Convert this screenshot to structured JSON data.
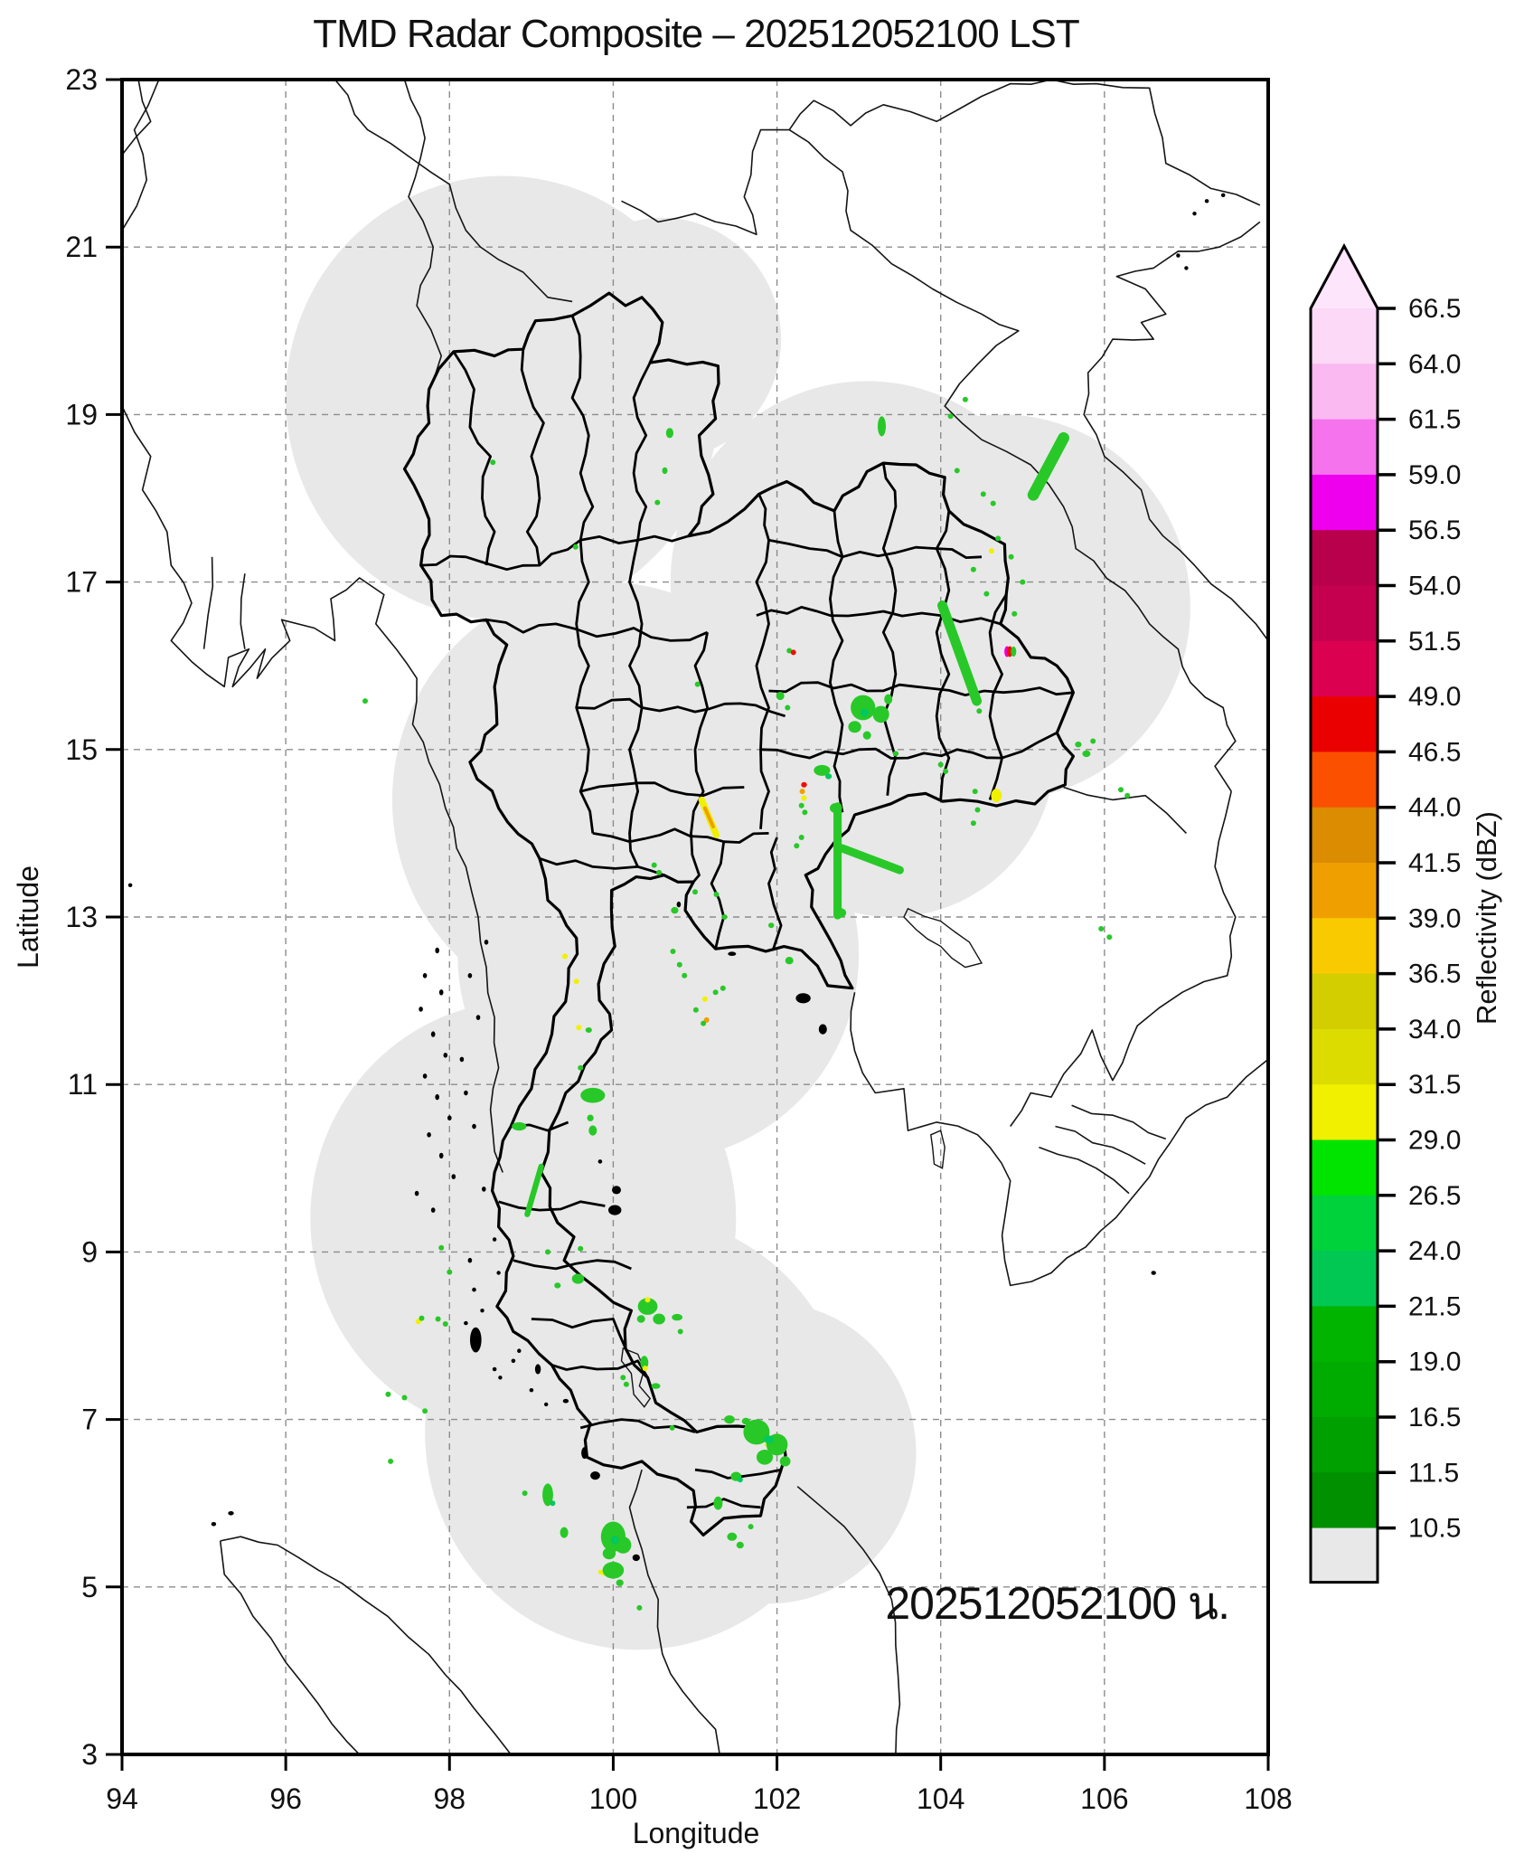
{
  "title": "TMD Radar Composite – 202512052100 LST",
  "timestamp_annotation": "202512052100 น.",
  "axes": {
    "xlabel": "Longitude",
    "ylabel": "Latitude",
    "x_range": [
      94,
      108
    ],
    "y_range": [
      3,
      23
    ],
    "x_ticks": [
      94,
      96,
      98,
      100,
      102,
      104,
      106,
      108
    ],
    "y_ticks": [
      3,
      5,
      7,
      9,
      11,
      13,
      15,
      17,
      19,
      21,
      23
    ],
    "grid_x": [
      96,
      98,
      100,
      102,
      104,
      106
    ],
    "grid_y": [
      5,
      7,
      9,
      11,
      13,
      15,
      17,
      19,
      21
    ]
  },
  "colorbar": {
    "label": "Reflectivity (dBZ)",
    "tick_labels_top_to_bottom": [
      "66.5",
      "64.0",
      "61.5",
      "59.0",
      "56.5",
      "54.0",
      "51.5",
      "49.0",
      "46.5",
      "44.0",
      "41.5",
      "39.0",
      "36.5",
      "34.0",
      "31.5",
      "29.0",
      "26.5",
      "24.0",
      "21.5",
      "19.0",
      "16.5",
      "11.5",
      "10.5"
    ],
    "segment_colors_top_to_bottom": [
      "#FBD9F7",
      "#FAB9F1",
      "#F573EC",
      "#EE00EE",
      "#B8004C",
      "#C4004F",
      "#DC0050",
      "#EB0000",
      "#FA5000",
      "#DC8C00",
      "#EFA000",
      "#FACA00",
      "#D2CE00",
      "#DCDC00",
      "#F0F000",
      "#00E400",
      "#00D23C",
      "#00C853",
      "#00B400",
      "#00AC00",
      "#00A000",
      "#009000"
    ],
    "under_color": "#E8E8E8",
    "over_color": "#FDE5FB"
  },
  "map_data": {
    "type": "radar-composite-map",
    "coverage_fill": "#E8E8E8",
    "coverage_circles_lon_lat_rdeg": [
      [
        98.65,
        19.2,
        2.65
      ],
      [
        100.6,
        19.9,
        1.45
      ],
      [
        103.1,
        17.0,
        2.4
      ],
      [
        104.75,
        16.7,
        2.3
      ],
      [
        103.4,
        15.0,
        2.0
      ],
      [
        99.9,
        14.4,
        2.6
      ],
      [
        100.55,
        12.55,
        2.45
      ],
      [
        98.9,
        9.4,
        2.6
      ],
      [
        100.3,
        6.85,
        2.6
      ],
      [
        101.9,
        6.6,
        1.8
      ]
    ],
    "echo_palette": {
      "G": "#28C828",
      "G2": "#00C860",
      "Y": "#F0F000",
      "O": "#F0A000",
      "R": "#EE1000",
      "M": "#E800C8",
      "W": "#FCE0F8"
    },
    "echo_blobs_lon_lat_w_h_color": [
      [
        100.69,
        18.78,
        0.09,
        0.12,
        "G"
      ],
      [
        100.63,
        18.33,
        0.06,
        0.08,
        "G"
      ],
      [
        100.54,
        17.95,
        0.05,
        0.06,
        "G"
      ],
      [
        98.53,
        18.43,
        0.05,
        0.05,
        "G"
      ],
      [
        99.54,
        17.42,
        0.05,
        0.05,
        "G"
      ],
      [
        96.97,
        15.58,
        0.06,
        0.06,
        "G"
      ],
      [
        101.03,
        15.78,
        0.05,
        0.05,
        "G"
      ],
      [
        103.28,
        18.86,
        0.1,
        0.24,
        "G"
      ],
      [
        104.3,
        19.18,
        0.06,
        0.05,
        "G"
      ],
      [
        104.12,
        18.98,
        0.05,
        0.04,
        "G"
      ],
      [
        104.2,
        18.33,
        0.04,
        0.04,
        "G"
      ],
      [
        104.52,
        18.05,
        0.05,
        0.05,
        "G"
      ],
      [
        104.64,
        17.94,
        0.04,
        0.04,
        "G"
      ],
      [
        104.7,
        17.52,
        0.05,
        0.04,
        "G"
      ],
      [
        104.62,
        17.37,
        0.05,
        0.04,
        "Y"
      ],
      [
        104.86,
        17.3,
        0.04,
        0.04,
        "G"
      ],
      [
        104.4,
        17.15,
        0.04,
        0.04,
        "G"
      ],
      [
        105.0,
        17.0,
        0.04,
        0.04,
        "G"
      ],
      [
        104.56,
        16.86,
        0.04,
        0.04,
        "G"
      ],
      [
        104.9,
        16.62,
        0.04,
        0.04,
        "G"
      ],
      [
        104.77,
        16.17,
        0.05,
        0.13,
        "W"
      ],
      [
        104.81,
        16.17,
        0.04,
        0.13,
        "M"
      ],
      [
        104.845,
        16.17,
        0.035,
        0.13,
        "R"
      ],
      [
        104.89,
        16.17,
        0.05,
        0.12,
        "G"
      ],
      [
        104.47,
        15.46,
        0.06,
        0.06,
        "G"
      ],
      [
        103.05,
        15.5,
        0.3,
        0.3,
        "G"
      ],
      [
        103.27,
        15.42,
        0.2,
        0.2,
        "G"
      ],
      [
        102.95,
        15.27,
        0.16,
        0.14,
        "G"
      ],
      [
        103.1,
        15.17,
        0.1,
        0.1,
        "G"
      ],
      [
        103.36,
        15.6,
        0.1,
        0.12,
        "G"
      ],
      [
        103.07,
        15.44,
        0.1,
        0.1,
        "G2"
      ],
      [
        103.45,
        14.95,
        0.07,
        0.06,
        "G"
      ],
      [
        102.04,
        15.64,
        0.1,
        0.1,
        "G"
      ],
      [
        102.13,
        15.5,
        0.05,
        0.05,
        "G"
      ],
      [
        102.15,
        16.18,
        0.05,
        0.04,
        "G"
      ],
      [
        102.2,
        16.16,
        0.04,
        0.04,
        "R"
      ],
      [
        104.68,
        14.45,
        0.13,
        0.16,
        "Y"
      ],
      [
        104.42,
        14.5,
        0.06,
        0.06,
        "G"
      ],
      [
        104.45,
        14.28,
        0.05,
        0.05,
        "G"
      ],
      [
        104.4,
        14.12,
        0.06,
        0.05,
        "G"
      ],
      [
        105.68,
        15.06,
        0.08,
        0.07,
        "G"
      ],
      [
        105.78,
        14.95,
        0.1,
        0.08,
        "G"
      ],
      [
        105.86,
        15.1,
        0.06,
        0.05,
        "G"
      ],
      [
        106.2,
        14.52,
        0.05,
        0.04,
        "G"
      ],
      [
        106.28,
        14.45,
        0.04,
        0.04,
        "G"
      ],
      [
        105.96,
        12.86,
        0.06,
        0.05,
        "G"
      ],
      [
        106.06,
        12.76,
        0.05,
        0.04,
        "G"
      ],
      [
        102.33,
        14.58,
        0.07,
        0.06,
        "R"
      ],
      [
        102.31,
        14.5,
        0.06,
        0.05,
        "O"
      ],
      [
        102.33,
        14.42,
        0.06,
        0.05,
        "Y"
      ],
      [
        102.3,
        14.33,
        0.05,
        0.05,
        "G"
      ],
      [
        102.34,
        14.25,
        0.04,
        0.05,
        "G"
      ],
      [
        102.55,
        14.75,
        0.2,
        0.13,
        "G"
      ],
      [
        102.63,
        14.68,
        0.08,
        0.07,
        "G2"
      ],
      [
        102.72,
        14.3,
        0.15,
        0.12,
        "G"
      ],
      [
        102.78,
        13.05,
        0.13,
        0.11,
        "G"
      ],
      [
        102.3,
        13.95,
        0.06,
        0.05,
        "G"
      ],
      [
        102.24,
        13.85,
        0.05,
        0.05,
        "G"
      ],
      [
        104.0,
        14.82,
        0.05,
        0.04,
        "G"
      ],
      [
        104.06,
        14.74,
        0.04,
        0.04,
        "G"
      ],
      [
        100.5,
        13.62,
        0.05,
        0.04,
        "G"
      ],
      [
        100.56,
        13.53,
        0.04,
        0.04,
        "G"
      ],
      [
        100.75,
        13.08,
        0.09,
        0.08,
        "G"
      ],
      [
        101.0,
        13.3,
        0.04,
        0.04,
        "G"
      ],
      [
        101.26,
        13.27,
        0.04,
        0.04,
        "G"
      ],
      [
        101.36,
        13.0,
        0.04,
        0.04,
        "G"
      ],
      [
        101.93,
        12.9,
        0.07,
        0.06,
        "G"
      ],
      [
        102.15,
        12.48,
        0.1,
        0.09,
        "G"
      ],
      [
        99.41,
        12.53,
        0.07,
        0.06,
        "Y"
      ],
      [
        99.55,
        12.23,
        0.06,
        0.06,
        "Y"
      ],
      [
        99.58,
        11.68,
        0.05,
        0.05,
        "Y"
      ],
      [
        99.7,
        11.65,
        0.08,
        0.06,
        "G"
      ],
      [
        100.73,
        12.59,
        0.04,
        0.04,
        "G"
      ],
      [
        100.81,
        12.43,
        0.04,
        0.04,
        "G"
      ],
      [
        100.87,
        12.3,
        0.04,
        0.04,
        "G"
      ],
      [
        101.25,
        12.1,
        0.04,
        0.04,
        "G"
      ],
      [
        101.34,
        12.15,
        0.04,
        0.04,
        "G"
      ],
      [
        101.12,
        12.02,
        0.05,
        0.04,
        "Y"
      ],
      [
        101.14,
        11.77,
        0.05,
        0.04,
        "O"
      ],
      [
        101.1,
        11.73,
        0.05,
        0.04,
        "G"
      ],
      [
        101.01,
        11.89,
        0.04,
        0.04,
        "G"
      ],
      [
        99.75,
        10.87,
        0.3,
        0.18,
        "G"
      ],
      [
        98.85,
        10.5,
        0.18,
        0.1,
        "G"
      ],
      [
        99.6,
        11.2,
        0.05,
        0.04,
        "G"
      ],
      [
        99.72,
        10.6,
        0.08,
        0.08,
        "G"
      ],
      [
        99.75,
        10.45,
        0.1,
        0.12,
        "G"
      ],
      [
        99.57,
        8.68,
        0.15,
        0.12,
        "G"
      ],
      [
        99.32,
        8.6,
        0.08,
        0.07,
        "G"
      ],
      [
        100.42,
        8.35,
        0.24,
        0.2,
        "G"
      ],
      [
        100.56,
        8.2,
        0.15,
        0.13,
        "G"
      ],
      [
        100.34,
        8.2,
        0.1,
        0.09,
        "G"
      ],
      [
        100.42,
        8.43,
        0.06,
        0.05,
        "Y"
      ],
      [
        100.78,
        8.22,
        0.13,
        0.08,
        "G"
      ],
      [
        100.82,
        8.05,
        0.05,
        0.05,
        "G"
      ],
      [
        100.38,
        7.68,
        0.1,
        0.16,
        "G"
      ],
      [
        100.39,
        7.61,
        0.05,
        0.04,
        "Y"
      ],
      [
        100.52,
        7.4,
        0.11,
        0.07,
        "G"
      ],
      [
        100.12,
        7.5,
        0.04,
        0.04,
        "G"
      ],
      [
        100.16,
        7.42,
        0.04,
        0.04,
        "G"
      ],
      [
        100.72,
        6.9,
        0.05,
        0.05,
        "G"
      ],
      [
        101.42,
        7.0,
        0.13,
        0.1,
        "G"
      ],
      [
        101.75,
        6.85,
        0.32,
        0.3,
        "G"
      ],
      [
        102.0,
        6.7,
        0.26,
        0.26,
        "G"
      ],
      [
        101.85,
        6.55,
        0.2,
        0.18,
        "G"
      ],
      [
        102.1,
        6.5,
        0.13,
        0.12,
        "G"
      ],
      [
        101.9,
        6.76,
        0.12,
        0.1,
        "G2"
      ],
      [
        101.62,
        6.98,
        0.1,
        0.08,
        "G"
      ],
      [
        101.5,
        6.32,
        0.13,
        0.11,
        "G"
      ],
      [
        101.55,
        6.28,
        0.06,
        0.05,
        "G2"
      ],
      [
        101.28,
        6.0,
        0.11,
        0.16,
        "G"
      ],
      [
        101.45,
        5.6,
        0.12,
        0.1,
        "G"
      ],
      [
        101.55,
        5.5,
        0.09,
        0.08,
        "G"
      ],
      [
        101.68,
        5.72,
        0.05,
        0.05,
        "G"
      ],
      [
        99.2,
        6.1,
        0.13,
        0.27,
        "G"
      ],
      [
        99.26,
        6.0,
        0.06,
        0.06,
        "G2"
      ],
      [
        98.92,
        6.12,
        0.06,
        0.06,
        "G"
      ],
      [
        99.4,
        5.65,
        0.1,
        0.13,
        "G"
      ],
      [
        100.0,
        5.6,
        0.3,
        0.36,
        "G"
      ],
      [
        100.12,
        5.5,
        0.2,
        0.2,
        "G"
      ],
      [
        99.95,
        5.4,
        0.16,
        0.14,
        "G"
      ],
      [
        100.02,
        5.56,
        0.1,
        0.1,
        "G2"
      ],
      [
        100.0,
        5.2,
        0.26,
        0.2,
        "G"
      ],
      [
        100.08,
        5.05,
        0.09,
        0.08,
        "G"
      ],
      [
        100.32,
        4.75,
        0.06,
        0.05,
        "G"
      ],
      [
        97.25,
        7.3,
        0.06,
        0.06,
        "G"
      ],
      [
        97.45,
        7.26,
        0.06,
        0.05,
        "G"
      ],
      [
        97.28,
        6.5,
        0.05,
        0.05,
        "G"
      ],
      [
        97.7,
        7.1,
        0.04,
        0.04,
        "G"
      ],
      [
        97.62,
        8.17,
        0.04,
        0.04,
        "Y"
      ],
      [
        97.66,
        8.21,
        0.04,
        0.04,
        "G"
      ],
      [
        97.86,
        8.2,
        0.04,
        0.04,
        "G"
      ],
      [
        97.95,
        8.14,
        0.04,
        0.04,
        "G"
      ],
      [
        98.0,
        8.76,
        0.04,
        0.04,
        "G"
      ],
      [
        97.9,
        9.05,
        0.04,
        0.04,
        "G"
      ],
      [
        99.2,
        9.0,
        0.06,
        0.05,
        "G"
      ],
      [
        99.6,
        9.04,
        0.05,
        0.05,
        "G"
      ]
    ],
    "echo_streaks_lon1_lat1_lon2_lat2_w_color": [
      [
        105.13,
        18.04,
        105.5,
        18.72,
        0.14,
        "G"
      ],
      [
        104.02,
        16.72,
        104.44,
        15.58,
        0.12,
        "G"
      ],
      [
        102.74,
        14.32,
        102.74,
        13.02,
        0.1,
        "G"
      ],
      [
        102.8,
        13.82,
        103.5,
        13.56,
        0.1,
        "G"
      ],
      [
        101.08,
        14.4,
        101.26,
        13.98,
        0.08,
        "Y"
      ],
      [
        101.12,
        14.3,
        101.22,
        14.08,
        0.04,
        "O"
      ],
      [
        98.95,
        9.45,
        99.12,
        10.02,
        0.07,
        "G"
      ],
      [
        101.7,
        6.88,
        101.84,
        6.83,
        0.05,
        "Y"
      ],
      [
        101.87,
        6.7,
        101.98,
        6.66,
        0.045,
        "Y"
      ],
      [
        99.84,
        5.18,
        99.92,
        5.15,
        0.05,
        "Y"
      ]
    ]
  }
}
